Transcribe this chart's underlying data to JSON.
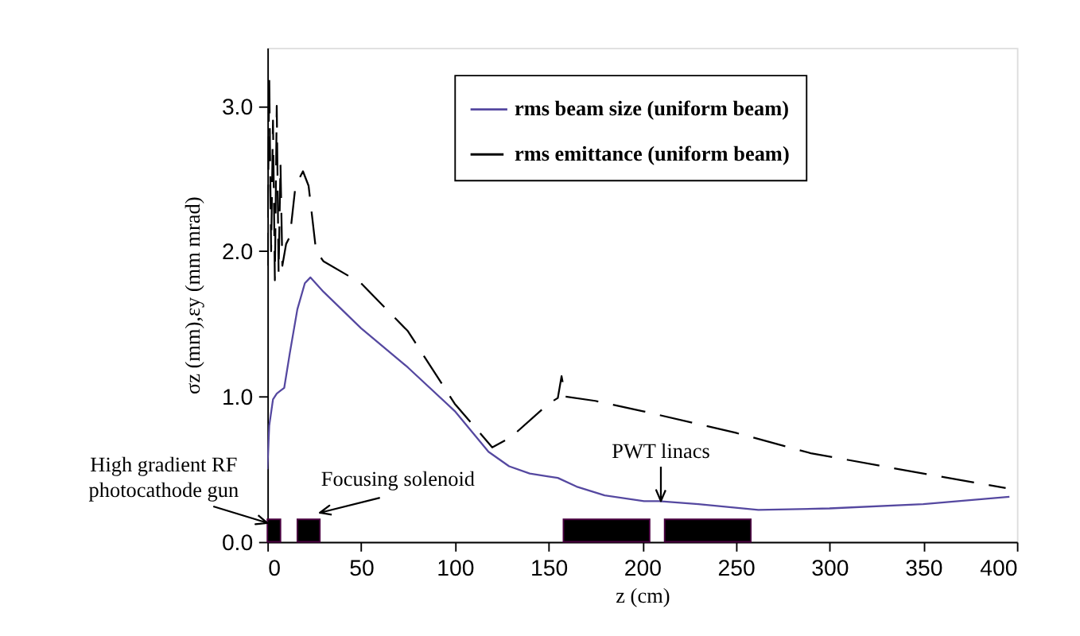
{
  "chart_data": {
    "type": "line",
    "xlabel": "z (cm)",
    "ylabel": "σz (mm),εy (mm mrad)",
    "xlim": [
      0,
      400
    ],
    "ylim": [
      0,
      3.4
    ],
    "xticks": [
      0,
      50,
      100,
      150,
      200,
      250,
      300,
      350,
      400
    ],
    "yticks": [
      {
        "value": 0,
        "label": "0.0"
      },
      {
        "value": 1,
        "label": "1.0"
      },
      {
        "value": 2,
        "label": "2.0"
      },
      {
        "value": 3,
        "label": "3.0"
      }
    ],
    "grid": false,
    "legend": "top",
    "marker": "none",
    "series": [
      {
        "name": "rms beam size (uniform beam)",
        "color": "#5548a0",
        "line_style": "solid",
        "x": [
          0,
          1,
          3,
          5,
          7,
          9,
          12,
          16,
          20,
          23,
          30,
          50,
          75,
          100,
          118,
          129,
          140,
          150,
          155,
          165,
          180,
          201,
          209,
          230,
          262,
          300,
          350,
          396
        ],
        "values": [
          0.5,
          0.8,
          0.98,
          1.02,
          1.04,
          1.06,
          1.3,
          1.6,
          1.78,
          1.82,
          1.72,
          1.47,
          1.2,
          0.9,
          0.62,
          0.52,
          0.47,
          0.45,
          0.44,
          0.38,
          0.32,
          0.28,
          0.28,
          0.26,
          0.22,
          0.23,
          0.26,
          0.31
        ]
      },
      {
        "name": "rms emittance (uniform beam)",
        "color": "#000000",
        "line_style": "dashed",
        "x": [
          0,
          1,
          2,
          3,
          4,
          5,
          6,
          7,
          8,
          10,
          12,
          15,
          19,
          22,
          26,
          30,
          50,
          75,
          100,
          120,
          130,
          150,
          155,
          157,
          159,
          175,
          200,
          250,
          290,
          350,
          394
        ],
        "values": [
          1.9,
          3.2,
          2.0,
          2.9,
          1.8,
          3.0,
          1.85,
          2.6,
          1.9,
          2.05,
          2.1,
          2.45,
          2.55,
          2.45,
          2.0,
          1.93,
          1.78,
          1.45,
          0.95,
          0.65,
          0.72,
          0.95,
          0.99,
          1.14,
          1.0,
          0.97,
          0.9,
          0.75,
          0.61,
          0.47,
          0.37
        ]
      }
    ],
    "bands": [
      {
        "axis": "x",
        "from": 0,
        "to": 7,
        "color": "#000000"
      },
      {
        "axis": "x",
        "from": 16,
        "to": 28,
        "color": "#000000"
      },
      {
        "axis": "x",
        "from": 158,
        "to": 204,
        "color": "#000000"
      },
      {
        "axis": "x",
        "from": 212,
        "to": 258,
        "color": "#000000"
      }
    ],
    "annotations": [
      {
        "text": "High gradient RF\nphotocathode gun",
        "x": 0,
        "y": 0.13
      },
      {
        "text": "Focusing solenoid",
        "x": 28,
        "y": 0.2
      },
      {
        "text": "PWT linacs",
        "x": 210,
        "y": 0.28
      }
    ]
  }
}
